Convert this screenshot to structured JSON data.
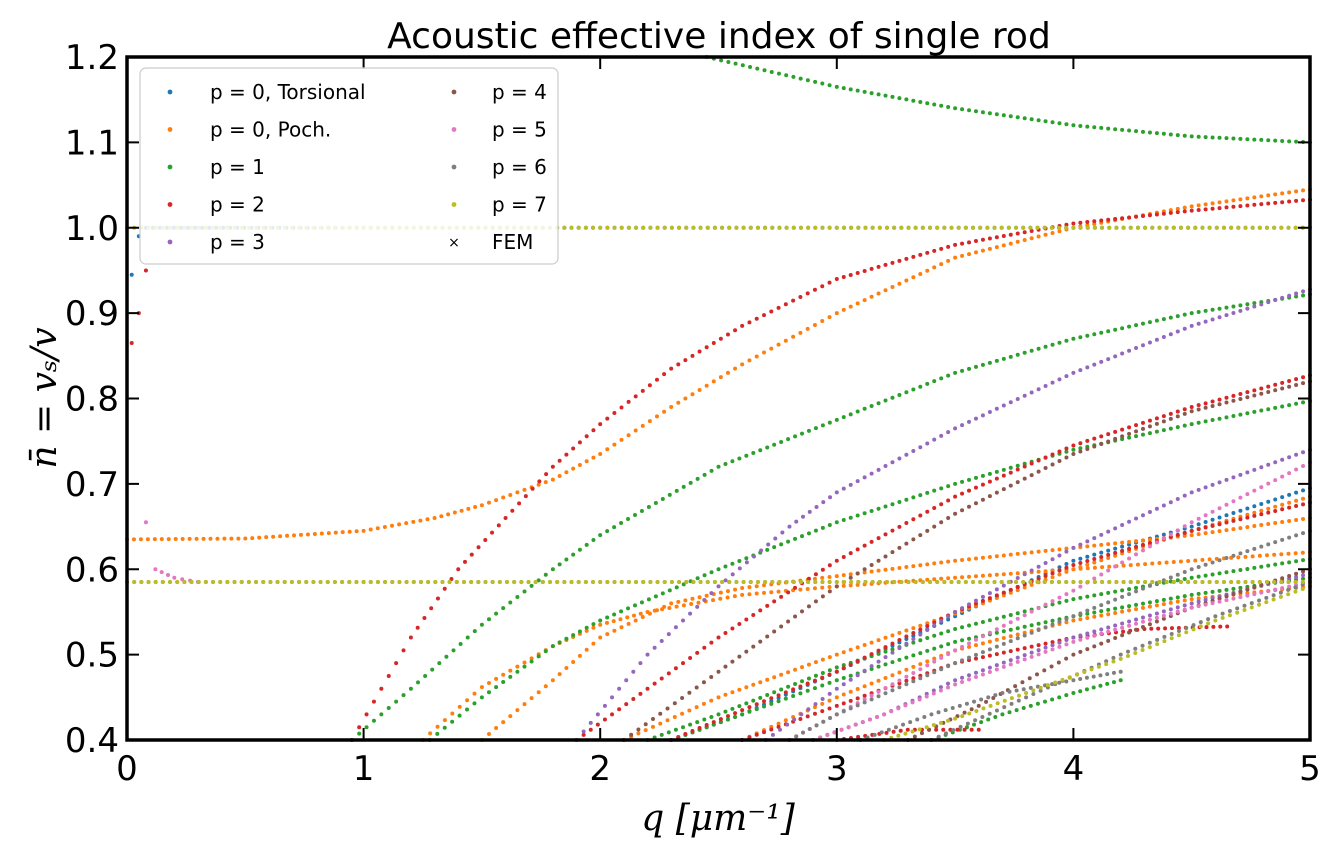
{
  "chart_data": {
    "type": "scatter",
    "title": "Acoustic effective index of single rod",
    "xlabel": "q [μm⁻¹]",
    "ylabel": "n̄ = vₛ/v",
    "xlim": [
      0,
      5
    ],
    "ylim": [
      0.4,
      1.2
    ],
    "xticks": [
      "0",
      "1",
      "2",
      "3",
      "4",
      "5"
    ],
    "yticks": [
      "0.4",
      "0.5",
      "0.6",
      "0.7",
      "0.8",
      "0.9",
      "1.0",
      "1.1",
      "1.2"
    ],
    "grid": false,
    "legend_position": "top-left",
    "legend_columns": 2,
    "series": [
      {
        "name": "p = 0, Torsional",
        "color": "#1f77b4",
        "curves": [
          [
            [
              0.02,
              0.945
            ],
            [
              0.05,
              0.99
            ],
            [
              0.08,
              1.0
            ],
            [
              1,
              1.0
            ],
            [
              2,
              1.0
            ],
            [
              3,
              1.0
            ],
            [
              4,
              1.0
            ],
            [
              5,
              1.0
            ]
          ],
          [
            [
              2.3,
              0.4
            ],
            [
              2.6,
              0.43
            ],
            [
              3.0,
              0.48
            ],
            [
              3.5,
              0.545
            ],
            [
              4.0,
              0.61
            ],
            [
              4.5,
              0.65
            ],
            [
              5.0,
              0.695
            ]
          ]
        ]
      },
      {
        "name": "p = 0, Poch.",
        "color": "#ff7f0e",
        "curves": [
          [
            [
              0.0,
              0.635
            ],
            [
              0.5,
              0.636
            ],
            [
              1.0,
              0.645
            ],
            [
              1.3,
              0.66
            ],
            [
              1.5,
              0.675
            ],
            [
              1.8,
              0.705
            ],
            [
              2.0,
              0.735
            ],
            [
              2.3,
              0.79
            ],
            [
              2.6,
              0.84
            ],
            [
              3.0,
              0.9
            ],
            [
              3.5,
              0.965
            ],
            [
              4.0,
              1.0
            ],
            [
              4.5,
              1.025
            ],
            [
              5.0,
              1.045
            ]
          ],
          [
            [
              1.5,
              0.4
            ],
            [
              1.8,
              0.47
            ],
            [
              2.0,
              0.52
            ],
            [
              2.3,
              0.56
            ],
            [
              2.6,
              0.578
            ],
            [
              3.0,
              0.592
            ],
            [
              3.5,
              0.61
            ],
            [
              4.0,
              0.625
            ],
            [
              4.5,
              0.64
            ],
            [
              5.0,
              0.66
            ]
          ],
          [
            [
              1.25,
              0.4
            ],
            [
              1.5,
              0.462
            ],
            [
              1.8,
              0.51
            ],
            [
              2.0,
              0.535
            ],
            [
              2.2,
              0.55
            ],
            [
              2.6,
              0.57
            ],
            [
              3.0,
              0.58
            ],
            [
              3.5,
              0.59
            ],
            [
              4.0,
              0.6
            ],
            [
              5.0,
              0.62
            ]
          ],
          [
            [
              2.6,
              0.4
            ],
            [
              3.0,
              0.45
            ],
            [
              3.5,
              0.505
            ],
            [
              4.0,
              0.54
            ],
            [
              4.5,
              0.565
            ],
            [
              5.0,
              0.58
            ]
          ],
          [
            [
              2.1,
              0.4
            ],
            [
              2.5,
              0.45
            ],
            [
              3.0,
              0.5
            ],
            [
              3.5,
              0.548
            ],
            [
              4.0,
              0.6
            ],
            [
              4.5,
              0.645
            ],
            [
              5.0,
              0.685
            ]
          ]
        ]
      },
      {
        "name": "p = 1",
        "color": "#2ca02c",
        "curves": [
          [
            [
              2.45,
              1.2
            ],
            [
              3.0,
              1.165
            ],
            [
              3.5,
              1.14
            ],
            [
              4.0,
              1.12
            ],
            [
              4.5,
              1.107
            ],
            [
              5.0,
              1.1
            ]
          ],
          [
            [
              0.95,
              0.4
            ],
            [
              1.2,
              0.46
            ],
            [
              1.5,
              0.535
            ],
            [
              1.8,
              0.6
            ],
            [
              2.0,
              0.64
            ],
            [
              2.5,
              0.72
            ],
            [
              3.0,
              0.775
            ],
            [
              3.5,
              0.83
            ],
            [
              4.0,
              0.87
            ],
            [
              4.5,
              0.9
            ],
            [
              5.0,
              0.922
            ]
          ],
          [
            [
              1.28,
              0.4
            ],
            [
              1.5,
              0.45
            ],
            [
              1.8,
              0.51
            ],
            [
              2.0,
              0.54
            ],
            [
              2.5,
              0.6
            ],
            [
              3.0,
              0.655
            ],
            [
              3.5,
              0.7
            ],
            [
              4.0,
              0.74
            ],
            [
              4.5,
              0.77
            ],
            [
              5.0,
              0.797
            ]
          ],
          [
            [
              2.2,
              0.4
            ],
            [
              2.5,
              0.43
            ],
            [
              3.0,
              0.485
            ],
            [
              3.5,
              0.53
            ],
            [
              4.0,
              0.565
            ],
            [
              4.5,
              0.59
            ],
            [
              5.0,
              0.612
            ]
          ],
          [
            [
              2.3,
              0.4
            ],
            [
              2.6,
              0.43
            ],
            [
              3.0,
              0.47
            ],
            [
              3.5,
              0.515
            ],
            [
              4.0,
              0.545
            ],
            [
              4.5,
              0.57
            ],
            [
              5.0,
              0.59
            ]
          ],
          [
            [
              3.4,
              0.4
            ],
            [
              3.7,
              0.43
            ],
            [
              4.0,
              0.455
            ],
            [
              4.2,
              0.47
            ]
          ]
        ]
      },
      {
        "name": "p = 2",
        "color": "#d62728",
        "curves": [
          [
            [
              0.02,
              0.865
            ],
            [
              0.05,
              0.9
            ],
            [
              0.08,
              0.95
            ]
          ],
          [
            [
              0.95,
              0.4
            ],
            [
              1.2,
              0.52
            ],
            [
              1.4,
              0.6
            ],
            [
              1.6,
              0.66
            ],
            [
              1.8,
              0.72
            ],
            [
              2.0,
              0.77
            ],
            [
              2.3,
              0.835
            ],
            [
              2.6,
              0.885
            ],
            [
              3.0,
              0.94
            ],
            [
              3.5,
              0.98
            ],
            [
              4.0,
              1.005
            ],
            [
              4.5,
              1.02
            ],
            [
              5.0,
              1.033
            ]
          ],
          [
            [
              1.9,
              0.4
            ],
            [
              2.2,
              0.46
            ],
            [
              2.5,
              0.52
            ],
            [
              3.0,
              0.61
            ],
            [
              3.5,
              0.685
            ],
            [
              4.0,
              0.745
            ],
            [
              4.5,
              0.79
            ],
            [
              5.0,
              0.827
            ]
          ],
          [
            [
              2.3,
              0.4
            ],
            [
              2.6,
              0.435
            ],
            [
              3.0,
              0.48
            ],
            [
              3.5,
              0.55
            ],
            [
              4.0,
              0.605
            ],
            [
              4.5,
              0.645
            ],
            [
              5.0,
              0.678
            ]
          ],
          [
            [
              2.6,
              0.4
            ],
            [
              3.0,
              0.44
            ],
            [
              3.5,
              0.49
            ],
            [
              4.0,
              0.52
            ],
            [
              4.3,
              0.53
            ],
            [
              4.65,
              0.533
            ]
          ],
          [
            [
              3.0,
              0.4
            ],
            [
              3.3,
              0.412
            ],
            [
              3.6,
              0.412
            ]
          ]
        ]
      },
      {
        "name": "p = 3",
        "color": "#9467bd",
        "curves": [
          [
            [
              1.9,
              0.4
            ],
            [
              2.2,
              0.5
            ],
            [
              2.5,
              0.58
            ],
            [
              2.8,
              0.65
            ],
            [
              3.0,
              0.69
            ],
            [
              3.5,
              0.765
            ],
            [
              4.0,
              0.83
            ],
            [
              4.5,
              0.885
            ],
            [
              5.0,
              0.928
            ]
          ],
          [
            [
              2.7,
              0.4
            ],
            [
              3.0,
              0.46
            ],
            [
              3.5,
              0.55
            ],
            [
              4.0,
              0.625
            ],
            [
              4.5,
              0.69
            ],
            [
              5.0,
              0.74
            ]
          ],
          [
            [
              2.9,
              0.4
            ],
            [
              3.2,
              0.43
            ],
            [
              3.5,
              0.47
            ],
            [
              4.0,
              0.52
            ],
            [
              4.5,
              0.56
            ],
            [
              5.0,
              0.595
            ]
          ]
        ]
      },
      {
        "name": "p = 4",
        "color": "#8c564b",
        "curves": [
          [
            [
              2.1,
              0.4
            ],
            [
              2.5,
              0.48
            ],
            [
              3.0,
              0.58
            ],
            [
              3.5,
              0.665
            ],
            [
              4.0,
              0.735
            ],
            [
              4.5,
              0.785
            ],
            [
              5.0,
              0.82
            ]
          ],
          [
            [
              3.3,
              0.4
            ],
            [
              3.6,
              0.44
            ],
            [
              4.0,
              0.5
            ],
            [
              4.5,
              0.555
            ],
            [
              5.0,
              0.6
            ]
          ]
        ]
      },
      {
        "name": "p = 5",
        "color": "#e377c2",
        "curves": [
          [
            [
              0.08,
              0.655
            ],
            [
              0.12,
              0.6
            ],
            [
              0.2,
              0.59
            ],
            [
              0.3,
              0.585
            ]
          ],
          [
            [
              2.8,
              0.4
            ],
            [
              3.0,
              0.43
            ],
            [
              3.5,
              0.505
            ],
            [
              4.0,
              0.575
            ],
            [
              4.5,
              0.655
            ],
            [
              5.0,
              0.725
            ]
          ],
          [
            [
              2.9,
              0.4
            ],
            [
              3.2,
              0.43
            ],
            [
              3.5,
              0.465
            ],
            [
              4.0,
              0.515
            ],
            [
              4.5,
              0.555
            ],
            [
              5.0,
              0.585
            ]
          ]
        ]
      },
      {
        "name": "p = 6",
        "color": "#7f7f7f",
        "curves": [
          [
            [
              0.0,
              0.585
            ],
            [
              1,
              0.585
            ],
            [
              2,
              0.585
            ],
            [
              3,
              0.585
            ],
            [
              4,
              0.585
            ],
            [
              5,
              0.585
            ]
          ],
          [
            [
              2.8,
              0.4
            ],
            [
              3.0,
              0.43
            ],
            [
              3.5,
              0.49
            ],
            [
              4.0,
              0.545
            ],
            [
              4.5,
              0.6
            ],
            [
              5.0,
              0.645
            ]
          ],
          [
            [
              3.1,
              0.4
            ],
            [
              3.4,
              0.43
            ],
            [
              3.7,
              0.455
            ],
            [
              4.0,
              0.47
            ],
            [
              4.2,
              0.48
            ]
          ],
          [
            [
              3.4,
              0.4
            ],
            [
              3.8,
              0.45
            ],
            [
              4.2,
              0.5
            ],
            [
              4.6,
              0.545
            ],
            [
              5.0,
              0.585
            ]
          ]
        ]
      },
      {
        "name": "p = 7",
        "color": "#bcbd22",
        "curves": [
          [
            [
              0.0,
              1.0
            ],
            [
              1,
              1.0
            ],
            [
              2,
              1.0
            ],
            [
              3,
              1.0
            ],
            [
              4,
              1.0
            ],
            [
              5,
              1.0
            ]
          ],
          [
            [
              0.0,
              0.585
            ],
            [
              1,
              0.585
            ],
            [
              2,
              0.585
            ],
            [
              3,
              0.585
            ],
            [
              4,
              0.585
            ],
            [
              5,
              0.585
            ]
          ],
          [
            [
              3.2,
              0.4
            ],
            [
              3.5,
              0.425
            ],
            [
              3.8,
              0.455
            ],
            [
              4.2,
              0.495
            ],
            [
              4.6,
              0.54
            ],
            [
              5.0,
              0.58
            ]
          ]
        ]
      },
      {
        "name": "FEM",
        "color": "#000000",
        "curves": []
      }
    ]
  }
}
